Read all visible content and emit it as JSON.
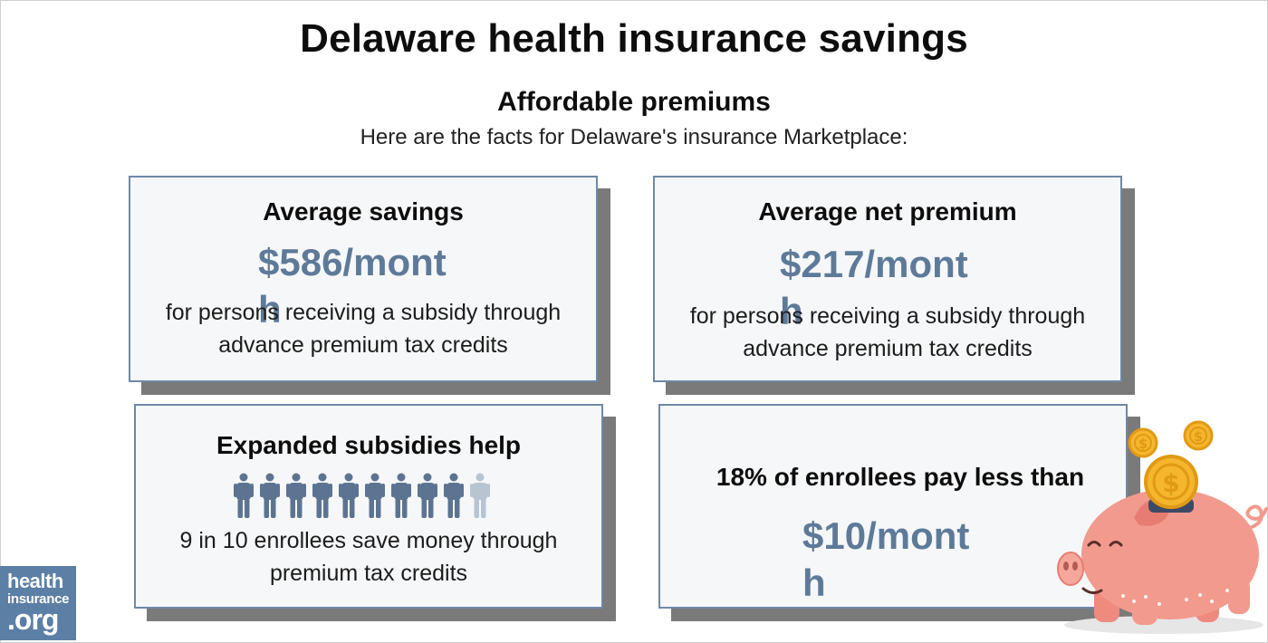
{
  "header": {
    "title": "Delaware health insurance savings",
    "subtitle": "Affordable premiums",
    "intro": "Here are the facts for Delaware's insurance Marketplace:"
  },
  "cards": [
    {
      "title": "Average savings",
      "value": "$586/month",
      "description_line1": "for persons receiving a subsidy through",
      "description_line2": "advance premium tax credits"
    },
    {
      "title": "Average net premium",
      "value": "$217/month",
      "description_line1": "for persons receiving a subsidy through",
      "description_line2": "advance premium tax credits"
    },
    {
      "title": "Expanded subsidies help",
      "people_total": 10,
      "people_highlighted": 9,
      "description_line1": "9 in 10 enrollees save money through",
      "description_line2": "premium tax credits"
    },
    {
      "title": "18% of enrollees pay less than",
      "value": "$10/month"
    }
  ],
  "logo": {
    "line1": "health",
    "line2": "insurance",
    "line3": ".org"
  },
  "colors": {
    "accent": "#5e7a99",
    "card_border": "#6f88a6",
    "person_dark": "#5c7491",
    "person_light": "#b8c4d0",
    "logo_bg": "#5c7fa6",
    "pig": "#f29a8e",
    "coin": "#f5b62e"
  },
  "icons": [
    "person-icon",
    "piggy-bank-icon",
    "dollar-coin-icon"
  ]
}
